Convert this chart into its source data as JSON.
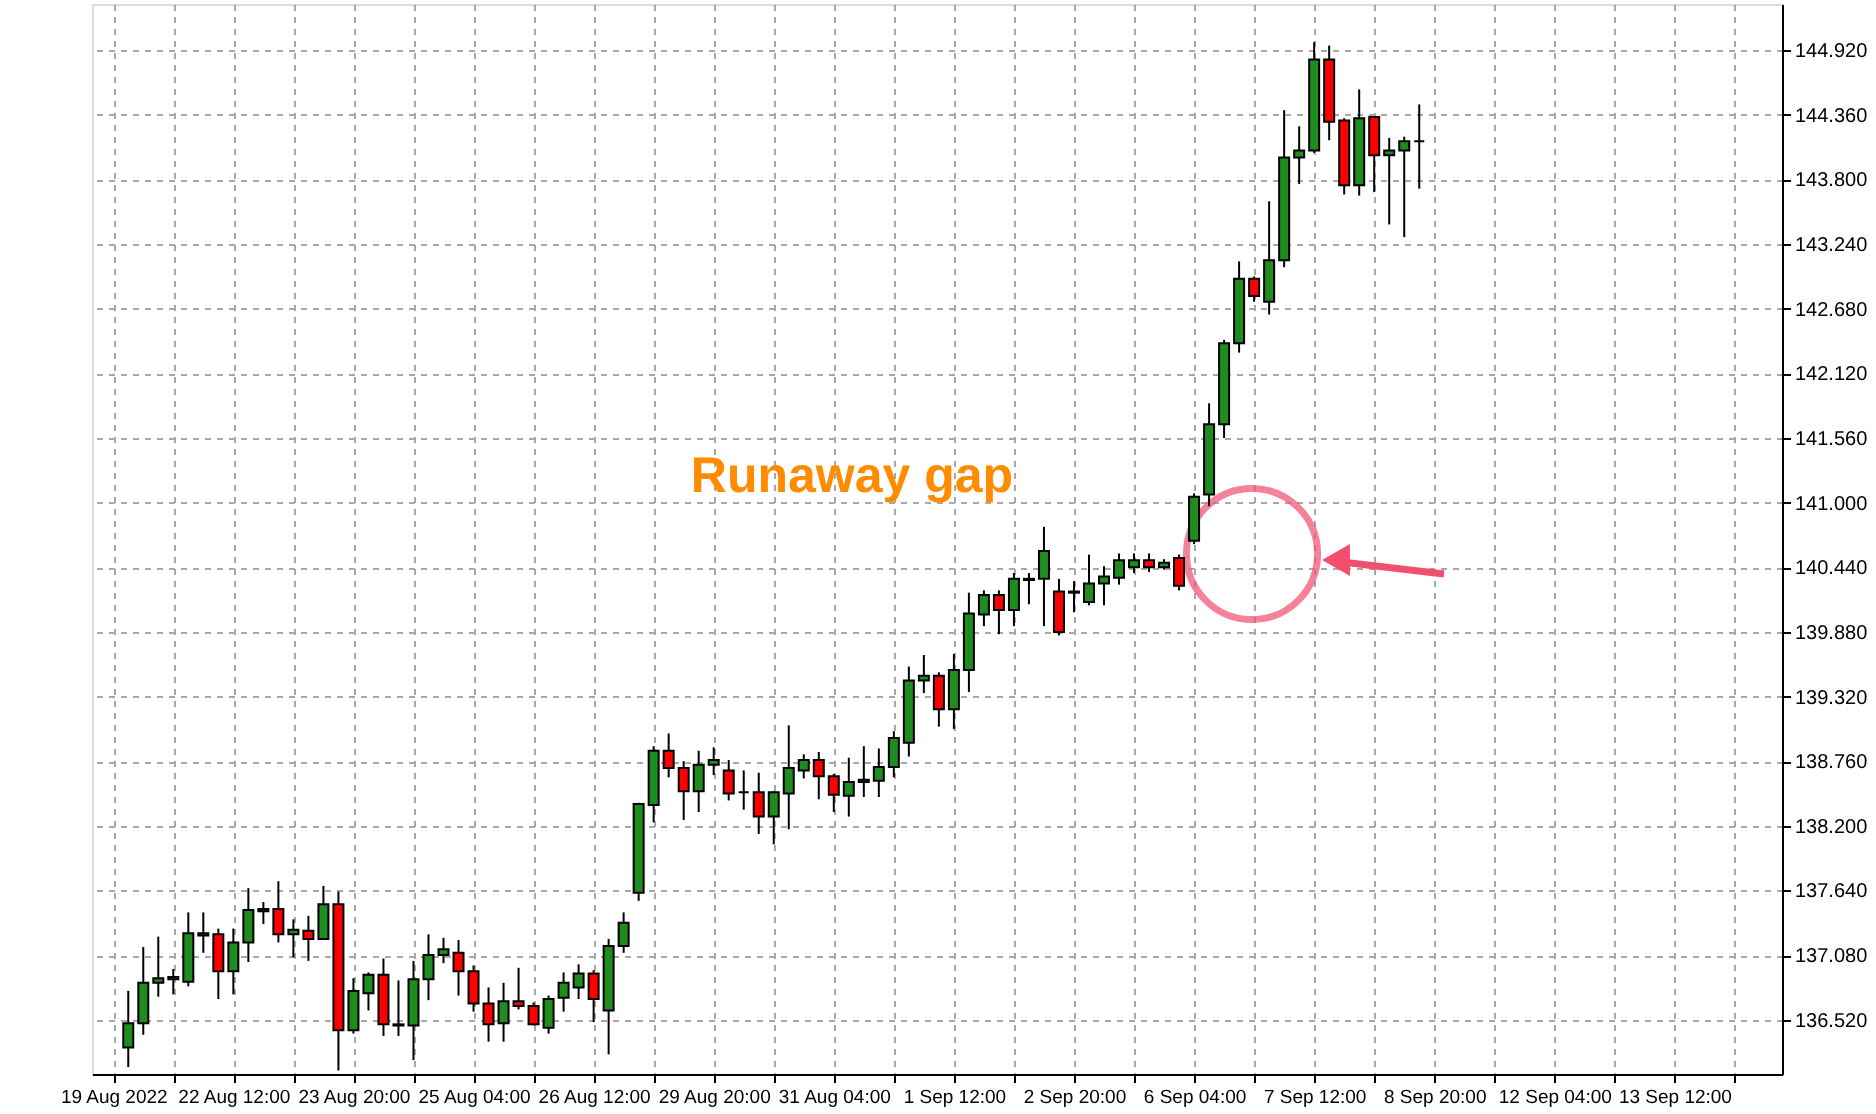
{
  "chart_data": {
    "type": "candlestick",
    "categories": [
      "19 Aug 2022",
      null,
      null,
      null,
      null,
      null,
      null,
      null,
      "22 Aug 12:00",
      null,
      null,
      null,
      null,
      null,
      null,
      null,
      "23 Aug 20:00",
      null,
      null,
      null,
      null,
      null,
      null,
      null,
      "25 Aug 04:00",
      null,
      null,
      null,
      null,
      null,
      null,
      null,
      "26 Aug 12:00",
      null,
      null,
      null,
      null,
      null,
      null,
      null,
      "29 Aug 20:00",
      null,
      null,
      null,
      null,
      null,
      null,
      null,
      "31 Aug 04:00",
      null,
      null,
      null,
      null,
      null,
      null,
      null,
      "1 Sep 12:00",
      null,
      null,
      null,
      null,
      null,
      null,
      null,
      "2 Sep 20:00",
      null,
      null,
      null,
      null,
      null,
      null,
      null,
      "6 Sep 04:00",
      null,
      null,
      null,
      null,
      null,
      null,
      null,
      "7 Sep 12:00",
      null,
      null,
      null,
      null,
      null,
      null,
      null,
      "8 Sep 20:00",
      null,
      null,
      null,
      null,
      null,
      null,
      null,
      "12 Sep 04:00",
      null,
      null,
      null,
      null,
      null,
      null,
      null,
      "13 Sep 12:00",
      null,
      null,
      null,
      null,
      null,
      null
    ],
    "ohlc": [
      null,
      [
        136.28,
        136.77,
        136.11,
        136.49
      ],
      [
        136.49,
        137.15,
        136.39,
        136.84
      ],
      [
        136.84,
        137.24,
        136.72,
        136.88
      ],
      [
        136.87,
        136.96,
        136.74,
        136.89
      ],
      [
        136.85,
        137.45,
        136.81,
        137.27
      ],
      [
        137.25,
        137.45,
        137.1,
        137.27
      ],
      [
        137.26,
        137.31,
        136.7,
        136.94
      ],
      [
        136.94,
        137.31,
        136.74,
        137.19
      ],
      [
        137.19,
        137.66,
        137.02,
        137.47
      ],
      [
        137.46,
        137.54,
        137.35,
        137.48
      ],
      [
        137.48,
        137.72,
        137.19,
        137.26
      ],
      [
        137.26,
        137.39,
        137.06,
        137.3
      ],
      [
        137.29,
        137.42,
        137.03,
        137.22
      ],
      [
        137.22,
        137.68,
        137.22,
        137.52
      ],
      [
        137.52,
        137.63,
        136.08,
        136.43
      ],
      [
        136.43,
        136.88,
        136.4,
        136.77
      ],
      [
        136.75,
        136.93,
        136.6,
        136.91
      ],
      [
        136.91,
        137.05,
        136.38,
        136.48
      ],
      [
        136.48,
        136.86,
        136.38,
        136.47
      ],
      [
        136.47,
        137.03,
        136.17,
        136.87
      ],
      [
        136.87,
        137.26,
        136.69,
        137.08
      ],
      [
        137.08,
        137.23,
        137.01,
        137.13
      ],
      [
        137.1,
        137.21,
        136.73,
        136.94
      ],
      [
        136.94,
        136.99,
        136.59,
        136.66
      ],
      [
        136.66,
        136.8,
        136.33,
        136.48
      ],
      [
        136.49,
        136.84,
        136.33,
        136.68
      ],
      [
        136.68,
        136.97,
        136.61,
        136.64
      ],
      [
        136.64,
        136.67,
        136.47,
        136.48
      ],
      [
        136.45,
        136.73,
        136.4,
        136.7
      ],
      [
        136.71,
        136.93,
        136.59,
        136.84
      ],
      [
        136.8,
        137.0,
        136.7,
        136.92
      ],
      [
        136.92,
        136.95,
        136.5,
        136.7
      ],
      [
        136.6,
        137.22,
        136.22,
        137.16
      ],
      [
        137.16,
        137.45,
        137.1,
        137.36
      ],
      [
        137.62,
        138.4,
        137.55,
        138.39
      ],
      [
        138.38,
        138.89,
        138.23,
        138.85
      ],
      [
        138.85,
        139.0,
        138.62,
        138.7
      ],
      [
        138.7,
        138.76,
        138.25,
        138.5
      ],
      [
        138.5,
        138.85,
        138.32,
        138.73
      ],
      [
        138.73,
        138.88,
        138.64,
        138.77
      ],
      [
        138.68,
        138.77,
        138.42,
        138.48
      ],
      [
        138.49,
        138.68,
        138.34,
        138.49
      ],
      [
        138.49,
        138.66,
        138.13,
        138.28
      ],
      [
        138.28,
        138.5,
        138.04,
        138.49
      ],
      [
        138.48,
        139.07,
        138.17,
        138.7
      ],
      [
        138.68,
        138.82,
        138.61,
        138.77
      ],
      [
        138.77,
        138.84,
        138.43,
        138.63
      ],
      [
        138.63,
        138.65,
        138.32,
        138.47
      ],
      [
        138.46,
        138.79,
        138.28,
        138.58
      ],
      [
        138.58,
        138.89,
        138.45,
        138.6
      ],
      [
        138.59,
        138.87,
        138.45,
        138.71
      ],
      [
        138.71,
        139.02,
        138.62,
        138.96
      ],
      [
        138.92,
        139.58,
        138.8,
        139.46
      ],
      [
        139.46,
        139.68,
        139.35,
        139.5
      ],
      [
        139.5,
        139.53,
        139.06,
        139.21
      ],
      [
        139.21,
        139.69,
        139.04,
        139.55
      ],
      [
        139.55,
        140.22,
        139.36,
        140.04
      ],
      [
        140.03,
        140.24,
        139.93,
        140.2
      ],
      [
        140.2,
        140.24,
        139.86,
        140.07
      ],
      [
        140.07,
        140.39,
        139.93,
        140.34
      ],
      [
        140.34,
        140.39,
        140.12,
        140.33
      ],
      [
        140.34,
        140.79,
        139.93,
        140.58
      ],
      [
        140.23,
        140.34,
        139.85,
        139.88
      ],
      [
        140.22,
        140.32,
        140.05,
        140.23
      ],
      [
        140.14,
        140.55,
        140.11,
        140.3
      ],
      [
        140.3,
        140.45,
        140.11,
        140.36
      ],
      [
        140.35,
        140.56,
        140.29,
        140.5
      ],
      [
        140.44,
        140.56,
        140.39,
        140.5
      ],
      [
        140.5,
        140.56,
        140.4,
        140.44
      ],
      [
        140.44,
        140.51,
        140.42,
        140.48
      ],
      [
        140.52,
        140.55,
        140.24,
        140.28
      ],
      [
        140.67,
        141.08,
        140.64,
        141.05
      ],
      [
        141.07,
        141.86,
        140.97,
        141.68
      ],
      [
        141.68,
        142.41,
        141.56,
        142.38
      ],
      [
        142.38,
        143.09,
        142.3,
        142.94
      ],
      [
        142.94,
        142.96,
        142.74,
        142.79
      ],
      [
        142.74,
        143.61,
        142.63,
        143.1
      ],
      [
        143.1,
        144.4,
        143.04,
        143.99
      ],
      [
        143.99,
        144.26,
        143.76,
        144.05
      ],
      [
        144.05,
        144.99,
        144.03,
        144.84
      ],
      [
        144.84,
        144.96,
        144.14,
        144.3
      ],
      [
        144.31,
        144.33,
        143.67,
        143.75
      ],
      [
        143.75,
        144.58,
        143.66,
        144.33
      ],
      [
        144.34,
        144.34,
        143.69,
        144.01
      ],
      [
        144.01,
        144.16,
        143.41,
        144.05
      ],
      [
        144.05,
        144.17,
        143.3,
        144.13
      ],
      [
        144.13,
        144.45,
        143.72,
        144.13
      ],
      null,
      null,
      null,
      null,
      null,
      null,
      null,
      null,
      null,
      null,
      null,
      null,
      null,
      null,
      null,
      null,
      null,
      null,
      null,
      null,
      null,
      null,
      null
    ],
    "colors": [
      null,
      "#1e8c1e",
      "#1e8c1e",
      "#1e8c1e",
      "#1e8c1e",
      "#1e8c1e",
      "#1e8c1e",
      "#ff0000",
      "#1e8c1e",
      "#1e8c1e",
      "#1e8c1e",
      "#ff0000",
      "#1e8c1e",
      "#ff0000",
      "#1e8c1e",
      "#ff0000",
      "#1e8c1e",
      "#1e8c1e",
      "#ff0000",
      "#ff0000",
      "#1e8c1e",
      "#1e8c1e",
      "#1e8c1e",
      "#ff0000",
      "#ff0000",
      "#ff0000",
      "#1e8c1e",
      "#ff0000",
      "#ff0000",
      "#1e8c1e",
      "#1e8c1e",
      "#1e8c1e",
      "#ff0000",
      "#1e8c1e",
      "#1e8c1e",
      "#1e8c1e",
      "#1e8c1e",
      "#ff0000",
      "#ff0000",
      "#1e8c1e",
      "#1e8c1e",
      "#ff0000",
      "#000000",
      "#ff0000",
      "#1e8c1e",
      "#1e8c1e",
      "#1e8c1e",
      "#ff0000",
      "#ff0000",
      "#1e8c1e",
      "#1e8c1e",
      "#1e8c1e",
      "#1e8c1e",
      "#1e8c1e",
      "#1e8c1e",
      "#ff0000",
      "#1e8c1e",
      "#1e8c1e",
      "#1e8c1e",
      "#ff0000",
      "#1e8c1e",
      "#ff0000",
      "#1e8c1e",
      "#ff0000",
      "#1e8c1e",
      "#1e8c1e",
      "#1e8c1e",
      "#1e8c1e",
      "#1e8c1e",
      "#ff0000",
      "#1e8c1e",
      "#ff0000",
      "#1e8c1e",
      "#1e8c1e",
      "#1e8c1e",
      "#1e8c1e",
      "#ff0000",
      "#1e8c1e",
      "#1e8c1e",
      "#1e8c1e",
      "#1e8c1e",
      "#ff0000",
      "#ff0000",
      "#1e8c1e",
      "#ff0000",
      "#1e8c1e",
      "#1e8c1e",
      "#000000",
      null,
      null,
      null,
      null,
      null,
      null,
      null,
      null,
      null,
      null,
      null,
      null,
      null,
      null,
      null,
      null,
      null,
      null,
      null,
      null,
      null,
      null,
      null
    ],
    "ylim": [
      136.05,
      145.32
    ],
    "yticks": [
      {
        "value": 136.52,
        "label": "136.520"
      },
      {
        "value": 137.08,
        "label": "137.080"
      },
      {
        "value": 137.64,
        "label": "137.640"
      },
      {
        "value": 138.2,
        "label": "138.200"
      },
      {
        "value": 138.76,
        "label": "138.760"
      },
      {
        "value": 139.32,
        "label": "139.320"
      },
      {
        "value": 139.88,
        "label": "139.880"
      },
      {
        "value": 140.44,
        "label": "140.440"
      },
      {
        "value": 141.0,
        "label": "141.000"
      },
      {
        "value": 141.56,
        "label": "141.560"
      },
      {
        "value": 142.12,
        "label": "142.120"
      },
      {
        "value": 142.68,
        "label": "142.680"
      },
      {
        "value": 143.24,
        "label": "143.240"
      },
      {
        "value": 143.8,
        "label": "143.800"
      },
      {
        "value": 144.36,
        "label": "144.360"
      },
      {
        "value": 144.92,
        "label": "144.920"
      }
    ],
    "grid": true,
    "annotations": [
      "Runaway gap"
    ]
  }
}
